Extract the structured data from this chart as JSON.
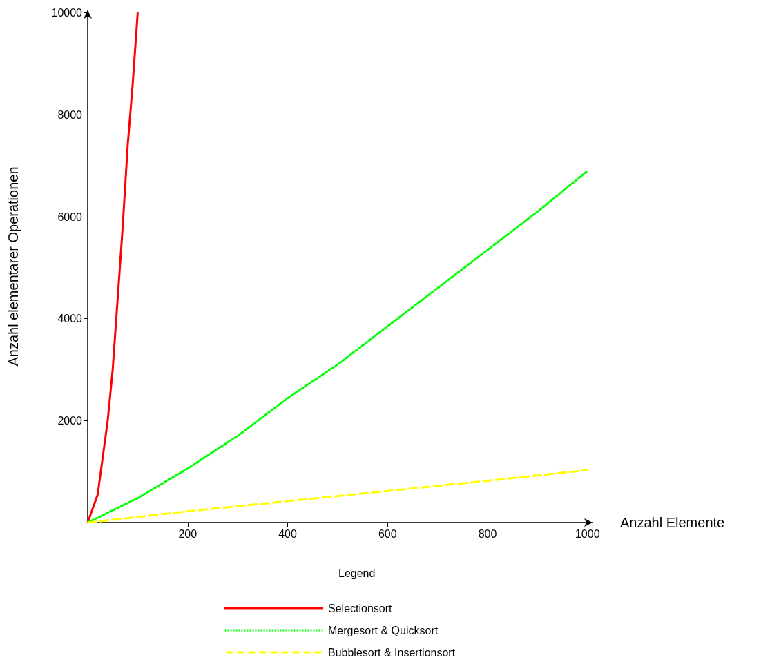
{
  "chart_data": {
    "type": "line",
    "xlabel": "Anzahl Elemente",
    "ylabel": "Anzahl elementarer Operationen",
    "legend_title": "Legend",
    "xlim": [
      0,
      1010
    ],
    "ylim": [
      0,
      10050
    ],
    "xticks": [
      200,
      400,
      600,
      800,
      1000
    ],
    "yticks": [
      2000,
      4000,
      6000,
      8000,
      10000
    ],
    "grid": false,
    "legend": "bottom",
    "marker": "none",
    "series": [
      {
        "name": "Selectionsort",
        "color": "#ff0000",
        "line_style": "solid",
        "x": [
          0,
          20,
          40,
          50,
          60,
          70,
          80,
          90,
          100
        ],
        "values": [
          0,
          550,
          2000,
          3000,
          4400,
          5800,
          7400,
          8600,
          10000
        ]
      },
      {
        "name": "Mergesort & Quicksort",
        "color": "#00ff00",
        "line_style": "dotted",
        "x": [
          0,
          100,
          200,
          300,
          400,
          500,
          600,
          700,
          800,
          900,
          1000
        ],
        "values": [
          0,
          480,
          1060,
          1700,
          2440,
          3100,
          3850,
          4600,
          5350,
          6100,
          6900
        ]
      },
      {
        "name": "Bubblesort & Insertionsort",
        "color": "#ffff00",
        "line_style": "dashed",
        "x": [
          0,
          200,
          400,
          600,
          800,
          1000
        ],
        "values": [
          0,
          220,
          420,
          620,
          820,
          1030
        ]
      }
    ]
  }
}
